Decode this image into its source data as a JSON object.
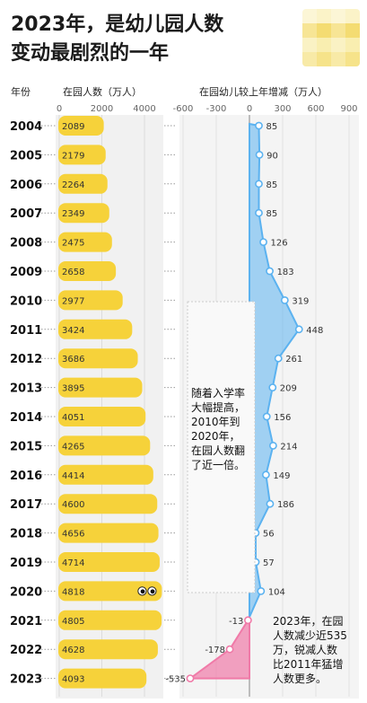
{
  "title_lines": [
    "2023年，是幼儿园人数",
    "变动最剧烈的一年"
  ],
  "colors": {
    "bar": "#f6d23a",
    "positive": "#5bb2f0",
    "negative": "#f07aa8"
  },
  "chart_data": {
    "type": "bar",
    "headers": {
      "year": "年份",
      "enrollment": "在园人数（万人）",
      "change": "在园幼儿较上年增减（万人）"
    },
    "years": [
      "2004",
      "2005",
      "2006",
      "2007",
      "2008",
      "2009",
      "2010",
      "2011",
      "2012",
      "2013",
      "2014",
      "2015",
      "2016",
      "2017",
      "2018",
      "2019",
      "2020",
      "2021",
      "2022",
      "2023"
    ],
    "enrollment": [
      2089,
      2179,
      2264,
      2349,
      2475,
      2658,
      2977,
      3424,
      3686,
      3895,
      4051,
      4265,
      4414,
      4600,
      4656,
      4714,
      4818,
      4805,
      4628,
      4093
    ],
    "change": [
      85,
      90,
      85,
      85,
      126,
      183,
      319,
      448,
      261,
      209,
      156,
      214,
      149,
      186,
      56,
      57,
      104,
      -13,
      -178,
      -535
    ],
    "enrollment_axis": {
      "ticks": [
        "0",
        "2000",
        "4000"
      ],
      "range": [
        0,
        4800
      ]
    },
    "change_axis": {
      "ticks": [
        "-600",
        "-300",
        "0",
        "300",
        "600",
        "900"
      ],
      "range": [
        -600,
        900
      ]
    },
    "annotations": [
      "随着入学率\n大幅提高，\n2010年到\n2020年，\n在园人数翻\n了近一倍。",
      "2023年，在园\n人数减少近535\n万，锐减人数\n比2011年猛增\n人数更多。"
    ]
  }
}
